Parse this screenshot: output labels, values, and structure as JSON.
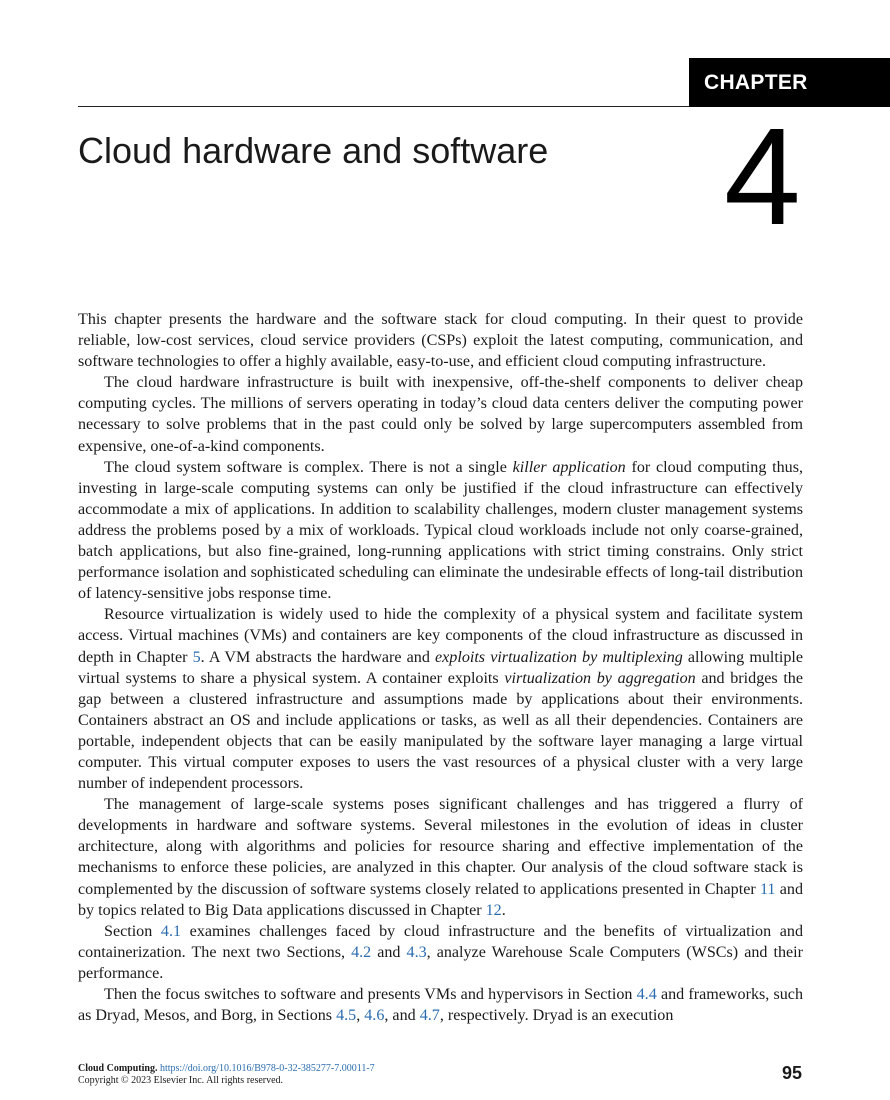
{
  "header": {
    "chapter_label": "CHAPTER",
    "chapter_number": "4",
    "title": "Cloud hardware and software"
  },
  "paragraphs": [
    [
      {
        "t": "This chapter presents the hardware and the software stack for cloud computing. In their quest to provide reliable, low-cost services, cloud service providers (CSPs) exploit the latest computing, communica­tion, and software technologies to offer a highly available, easy-to-use, and efficient cloud computing infrastructure."
      }
    ],
    [
      {
        "t": "The cloud hardware infrastructure is built with inexpensive, off-the-shelf components to deliver cheap computing cycles. The millions of servers operating in today’s cloud data centers deliver the computing power necessary to solve problems that in the past could only be solved by large supercom­puters assembled from expensive, one-of-a-kind components."
      }
    ],
    [
      {
        "t": "The cloud system software is complex. There is not a single "
      },
      {
        "t": "killer application",
        "s": "i"
      },
      {
        "t": " for cloud computing thus, investing in large-scale computing systems can only be justified if the cloud infrastructure can effectively accommodate a mix of applications. In addition to scalability challenges, modern cluster management systems address the problems posed by a mix of workloads. Typical cloud workloads in­clude not only coarse-grained, batch applications, but also fine-grained, long-running applications with strict timing constrains. Only strict performance isolation and sophisticated scheduling can eliminate the undesirable effects of long-tail distribution of latency-sensitive jobs response time."
      }
    ],
    [
      {
        "t": "Resource virtualization is widely used to hide the complexity of a physical system and facilitate system access. Virtual machines (VMs) and containers are key components of the cloud infrastructure as discussed in depth in Chapter "
      },
      {
        "t": "5",
        "s": "ref"
      },
      {
        "t": ". A VM abstracts the hardware and "
      },
      {
        "t": "exploits virtualization by multi­plexing",
        "s": "i"
      },
      {
        "t": " allowing multiple virtual systems to share a physical system. A container exploits "
      },
      {
        "t": "virtualization by aggregation",
        "s": "i"
      },
      {
        "t": " and bridges the gap between a clustered infrastructure and assumptions made by appli­cations about their environments. Containers abstract an OS and include applications or tasks, as well as all their dependencies. Containers are portable, independent objects that can be easily manipulated by the software layer managing a large virtual computer. This virtual computer exposes to users the vast resources of a physical cluster with a very large number of independent processors."
      }
    ],
    [
      {
        "t": "The management of large-scale systems poses significant challenges and has triggered a flurry of developments in hardware and software systems. Several milestones in the evolution of ideas in clus­ter architecture, along with algorithms and policies for resource sharing and effective implementation of the mechanisms to enforce these policies, are analyzed in this chapter. Our analysis of the cloud software stack is complemented by the discussion of software systems closely related to applications presented in Chapter "
      },
      {
        "t": "11",
        "s": "ref"
      },
      {
        "t": " and by topics related to Big Data applications discussed in Chapter "
      },
      {
        "t": "12",
        "s": "ref"
      },
      {
        "t": "."
      }
    ],
    [
      {
        "t": "Section "
      },
      {
        "t": "4.1",
        "s": "ref"
      },
      {
        "t": " examines challenges faced by cloud infrastructure and the benefits of virtualization and containerization. The next two Sections, "
      },
      {
        "t": "4.2",
        "s": "ref"
      },
      {
        "t": " and "
      },
      {
        "t": "4.3",
        "s": "ref"
      },
      {
        "t": ", analyze Warehouse Scale Computers (WSCs) and their performance."
      }
    ],
    [
      {
        "t": "Then the focus switches to software and presents VMs and hypervisors in Section "
      },
      {
        "t": "4.4",
        "s": "ref"
      },
      {
        "t": " and frame­works, such as Dryad, Mesos, and Borg, in Sections "
      },
      {
        "t": "4.5",
        "s": "ref"
      },
      {
        "t": ", "
      },
      {
        "t": "4.6",
        "s": "ref"
      },
      {
        "t": ", and "
      },
      {
        "t": "4.7",
        "s": "ref"
      },
      {
        "t": ", respectively. Dryad is an execution"
      }
    ]
  ],
  "footer": {
    "book": "Cloud Computing.",
    "doi": "https://doi.org/10.1016/B978-0-32-385277-7.00011-7",
    "copyright": "Copyright © 2023 Elsevier Inc. All rights reserved.",
    "page_number": "95"
  }
}
